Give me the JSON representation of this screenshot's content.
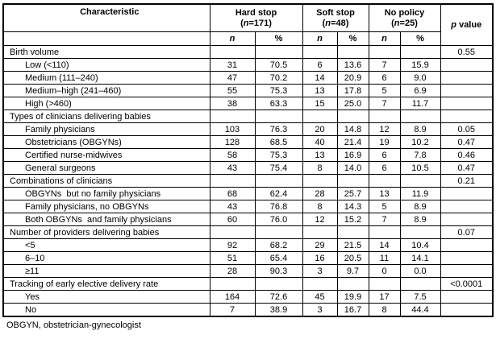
{
  "colors": {
    "background": "#ffffff",
    "text": "#000000",
    "border": "#000000"
  },
  "table": {
    "header": {
      "characteristic": "Characteristic",
      "groups": [
        {
          "line1": "Hard stop",
          "line2": "(n=171)"
        },
        {
          "line1": "Soft stop",
          "line2": "(n=48)"
        },
        {
          "line1": "No policy",
          "line2": "(n=25)"
        }
      ],
      "n_label": "n",
      "pct_label": "%",
      "p_label": "p value"
    },
    "rows": [
      {
        "label": "Birth volume",
        "type": "section",
        "cells": [
          "",
          "",
          "",
          "",
          "",
          ""
        ],
        "p": "0.55"
      },
      {
        "label": "Low (<110)",
        "type": "sub",
        "cells": [
          "31",
          "70.5",
          "6",
          "13.6",
          "7",
          "15.9"
        ],
        "p": ""
      },
      {
        "label": "Medium (111–240)",
        "type": "sub",
        "cells": [
          "47",
          "70.2",
          "14",
          "20.9",
          "6",
          "9.0"
        ],
        "p": ""
      },
      {
        "label": "Medium–high (241–460)",
        "type": "sub",
        "cells": [
          "55",
          "75.3",
          "13",
          "17.8",
          "5",
          "6.9"
        ],
        "p": ""
      },
      {
        "label": "High (>460)",
        "type": "sub",
        "cells": [
          "38",
          "63.3",
          "15",
          "25.0",
          "7",
          "11.7"
        ],
        "p": ""
      },
      {
        "label": "Types of clinicians delivering babies",
        "type": "section",
        "cells": [
          "",
          "",
          "",
          "",
          "",
          ""
        ],
        "p": ""
      },
      {
        "label": "Family physicians",
        "type": "sub",
        "cells": [
          "103",
          "76.3",
          "20",
          "14.8",
          "12",
          "8.9"
        ],
        "p": "0.05"
      },
      {
        "label": "Obstetricians (OBGYNs)",
        "type": "sub",
        "cells": [
          "128",
          "68.5",
          "40",
          "21.4",
          "19",
          "10.2"
        ],
        "p": "0.47"
      },
      {
        "label": "Certified nurse-midwives",
        "type": "sub",
        "cells": [
          "58",
          "75.3",
          "13",
          "16.9",
          "6",
          "7.8"
        ],
        "p": "0.46"
      },
      {
        "label": "General surgeons",
        "type": "sub",
        "cells": [
          "43",
          "75.4",
          "8",
          "14.0",
          "6",
          "10.5"
        ],
        "p": "0.47"
      },
      {
        "label": "Combinations of clinicians",
        "type": "section",
        "cells": [
          "",
          "",
          "",
          "",
          "",
          ""
        ],
        "p": "0.21"
      },
      {
        "label": "OBGYNs  but no family physicians",
        "type": "sub",
        "cells": [
          "68",
          "62.4",
          "28",
          "25.7",
          "13",
          "11.9"
        ],
        "p": ""
      },
      {
        "label": "Family physicians, no OBGYNs",
        "type": "sub",
        "cells": [
          "43",
          "76.8",
          "8",
          "14.3",
          "5",
          "8.9"
        ],
        "p": ""
      },
      {
        "label": "Both OBGYNs  and family physicians",
        "type": "sub",
        "cells": [
          "60",
          "76.0",
          "12",
          "15.2",
          "7",
          "8.9"
        ],
        "p": ""
      },
      {
        "label": "Number of providers delivering babies",
        "type": "section",
        "cells": [
          "",
          "",
          "",
          "",
          "",
          ""
        ],
        "p": "0.07"
      },
      {
        "label": "<5",
        "type": "sub",
        "cells": [
          "92",
          "68.2",
          "29",
          "21.5",
          "14",
          "10.4"
        ],
        "p": ""
      },
      {
        "label": "6–10",
        "type": "sub",
        "cells": [
          "51",
          "65.4",
          "16",
          "20.5",
          "11",
          "14.1"
        ],
        "p": ""
      },
      {
        "label": "≥11",
        "type": "sub",
        "cells": [
          "28",
          "90.3",
          "3",
          "9.7",
          "0",
          "0.0"
        ],
        "p": ""
      },
      {
        "label": "Tracking of early elective delivery rate",
        "type": "section",
        "cells": [
          "",
          "",
          "",
          "",
          "",
          ""
        ],
        "p": "<0.0001"
      },
      {
        "label": "Yes",
        "type": "sub",
        "cells": [
          "164",
          "72.6",
          "45",
          "19.9",
          "17",
          "7.5"
        ],
        "p": ""
      },
      {
        "label": "No",
        "type": "sub",
        "cells": [
          "7",
          "38.9",
          "3",
          "16.7",
          "8",
          "44.4"
        ],
        "p": ""
      }
    ],
    "footnote": "OBGYN, obstetrician-gynecologist"
  }
}
